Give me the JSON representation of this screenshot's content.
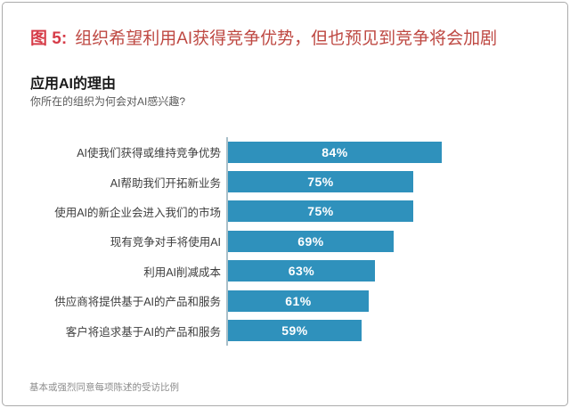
{
  "figure": {
    "label": "图 5:",
    "title": "组织希望利用AI获得竞争优势，但也预见到竞争将会加剧"
  },
  "chart_data": {
    "type": "bar",
    "orientation": "horizontal",
    "title": "应用AI的理由",
    "question": "你所在的组织为何会对AI感兴趣?",
    "categories": [
      "AI使我们获得或维持竞争优势",
      "AI帮助我们开拓新业务",
      "使用AI的新企业会进入我们的市场",
      "现有竞争对手将使用AI",
      "利用AI削减成本",
      "供应商将提供基于AI的产品和服务",
      "客户将追求基于AI的产品和服务"
    ],
    "values": [
      84,
      75,
      75,
      69,
      63,
      61,
      59
    ],
    "value_suffix": "%",
    "value_labels": [
      "84%",
      "75%",
      "75%",
      "69%",
      "63%",
      "61%",
      "59%"
    ],
    "footnote": "基本或强烈同意每项陈述的受访比例",
    "bar_color": "#2f91bc",
    "axis_color": "#a9bfc9",
    "xlim": [
      17,
      100
    ],
    "grid": false,
    "legend": false,
    "value_label_position": "inside-center"
  },
  "colors": {
    "figure_label": "#d63c48",
    "figure_title": "#be4842",
    "panel_border": "#ababab"
  }
}
